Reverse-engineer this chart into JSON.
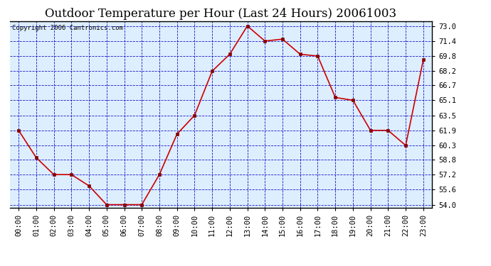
{
  "title": "Outdoor Temperature per Hour (Last 24 Hours) 20061003",
  "copyright_text": "Copyright 2006 Cantronics.com",
  "hours": [
    "00:00",
    "01:00",
    "02:00",
    "03:00",
    "04:00",
    "05:00",
    "06:00",
    "07:00",
    "08:00",
    "09:00",
    "10:00",
    "11:00",
    "12:00",
    "13:00",
    "14:00",
    "15:00",
    "16:00",
    "17:00",
    "18:00",
    "19:00",
    "20:00",
    "21:00",
    "22:00",
    "23:00"
  ],
  "temps": [
    61.9,
    59.0,
    57.2,
    57.2,
    56.0,
    54.0,
    54.0,
    54.0,
    57.2,
    61.5,
    63.5,
    68.2,
    70.0,
    73.0,
    71.4,
    71.6,
    70.0,
    69.8,
    65.4,
    65.1,
    61.9,
    61.9,
    60.3,
    69.4
  ],
  "yticks": [
    54.0,
    55.6,
    57.2,
    58.8,
    60.3,
    61.9,
    63.5,
    65.1,
    66.7,
    68.2,
    69.8,
    71.4,
    73.0
  ],
  "ymin": 54.0,
  "ymax": 73.0,
  "line_color": "#cc0000",
  "marker_color": "#880000",
  "fig_bg_color": "#ffffff",
  "plot_bg": "#ddeeff",
  "border_color": "#000000",
  "grid_color": "#0000bb",
  "title_fontsize": 12,
  "tick_fontsize": 7.5,
  "copyright_fontsize": 6.5
}
